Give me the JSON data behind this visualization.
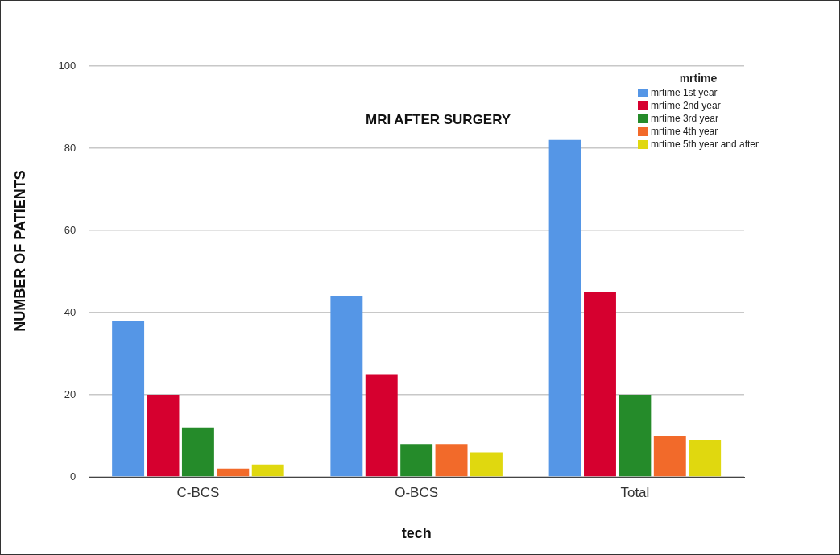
{
  "chart_data": {
    "type": "bar",
    "title": "MRI AFTER SURGERY",
    "xlabel": "tech",
    "ylabel": "NUMBER OF PATIENTS",
    "legend_title": "mrtime",
    "categories": [
      "C-BCS",
      "O-BCS",
      "Total"
    ],
    "series": [
      {
        "name": "mrtime 1st year",
        "color": "#5596e6",
        "values": [
          38,
          44,
          82
        ]
      },
      {
        "name": "mrtime 2nd year",
        "color": "#d6002f",
        "values": [
          20,
          25,
          45
        ]
      },
      {
        "name": "mrtime 3rd year",
        "color": "#258b2a",
        "values": [
          12,
          8,
          20
        ]
      },
      {
        "name": "mrtime 4th year",
        "color": "#f26a2a",
        "values": [
          2,
          8,
          10
        ]
      },
      {
        "name": "mrtime 5th year and after",
        "color": "#e0d80f",
        "values": [
          3,
          6,
          9
        ]
      }
    ],
    "ylim": [
      0,
      110
    ],
    "yticks": [
      0,
      20,
      40,
      60,
      80,
      100
    ],
    "grid": "y",
    "legend": "top right"
  }
}
